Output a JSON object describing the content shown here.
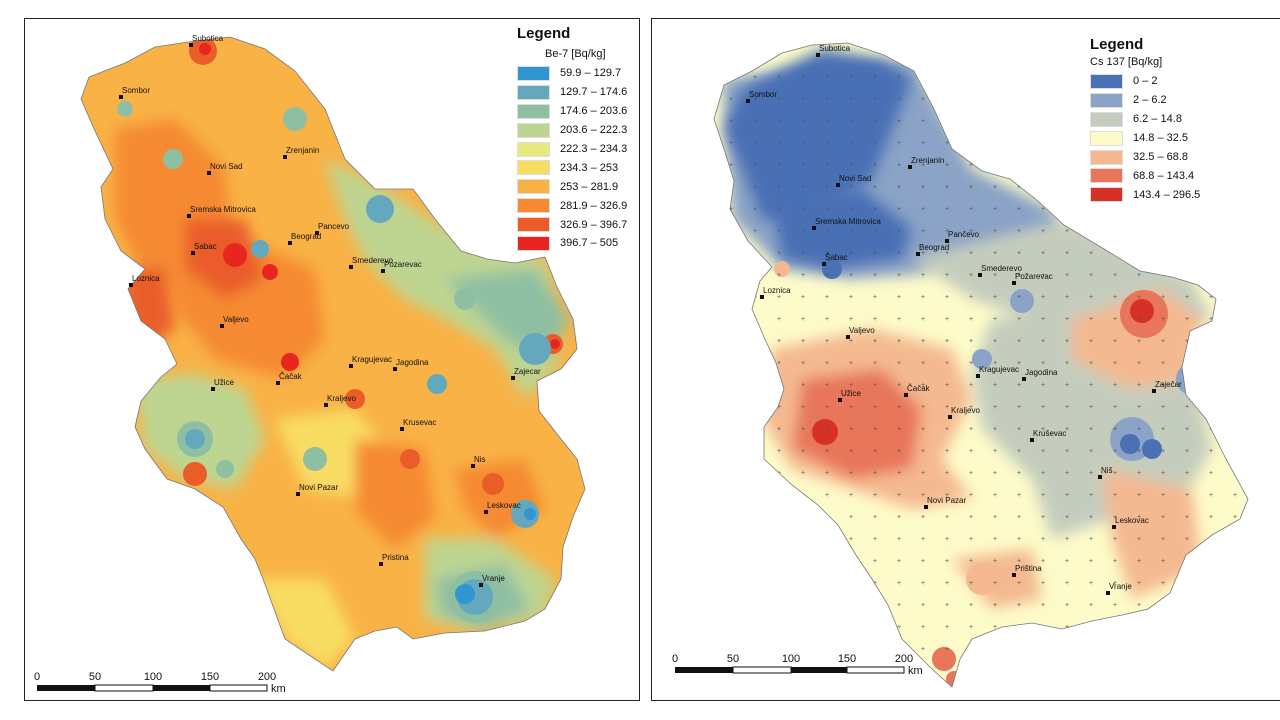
{
  "maps": [
    {
      "legend_title": "Legend",
      "variable": "Be-7 [Bq/kg]",
      "classes": [
        {
          "range": "59.9 – 129.7",
          "color": "#2f96d1"
        },
        {
          "range": "129.7 – 174.6",
          "color": "#63a8bd"
        },
        {
          "range": "174.6 – 203.6",
          "color": "#8fbfa2"
        },
        {
          "range": "203.6 – 222.3",
          "color": "#bdd591"
        },
        {
          "range": "222.3 – 234.3",
          "color": "#e7e97d"
        },
        {
          "range": "234.3 – 253",
          "color": "#f8dd63"
        },
        {
          "range": "253 – 281.9",
          "color": "#f9b246"
        },
        {
          "range": "281.9 – 326.9",
          "color": "#f58a33"
        },
        {
          "range": "326.9 – 396.7",
          "color": "#ea5d29"
        },
        {
          "range": "396.7 – 505",
          "color": "#e8261f"
        }
      ],
      "cities": [
        {
          "name": "Subotica"
        },
        {
          "name": "Sombor"
        },
        {
          "name": "Zrenjanin"
        },
        {
          "name": "Novi Sad"
        },
        {
          "name": "Sremska Mitrovica"
        },
        {
          "name": "Pancevo"
        },
        {
          "name": "Beograd"
        },
        {
          "name": "Sabac"
        },
        {
          "name": "Smederevo"
        },
        {
          "name": "Pozarevac"
        },
        {
          "name": "Loznica"
        },
        {
          "name": "Valjevo"
        },
        {
          "name": "Kragujevac"
        },
        {
          "name": "Jagodina"
        },
        {
          "name": "Zajecar"
        },
        {
          "name": "Užice"
        },
        {
          "name": "Čačak"
        },
        {
          "name": "Kraljevo"
        },
        {
          "name": "Krusevac"
        },
        {
          "name": "Nis"
        },
        {
          "name": "Novi Pazar"
        },
        {
          "name": "Leskovac"
        },
        {
          "name": "Pristina"
        },
        {
          "name": "Vranje"
        }
      ],
      "scale": {
        "ticks": [
          "0",
          "50",
          "100",
          "150",
          "200"
        ],
        "unit": "km"
      }
    },
    {
      "legend_title": "Legend",
      "variable": "Cs 137 [Bq/kg]",
      "classes": [
        {
          "range": "0 – 2",
          "color": "#4a70b5"
        },
        {
          "range": "2 – 6.2",
          "color": "#8aa3c6"
        },
        {
          "range": "6.2 – 14.8",
          "color": "#c4cdbd"
        },
        {
          "range": "14.8 – 32.5",
          "color": "#fdfbc9"
        },
        {
          "range": "32.5 – 68.8",
          "color": "#f4b990"
        },
        {
          "range": "68.8 – 143.4",
          "color": "#e8765a"
        },
        {
          "range": "143.4 – 296.5",
          "color": "#d63027"
        }
      ],
      "cities": [
        {
          "name": "Subotica"
        },
        {
          "name": "Sombor"
        },
        {
          "name": "Zrenjanin"
        },
        {
          "name": "Novi Sad"
        },
        {
          "name": "Sremska Mitrovica"
        },
        {
          "name": "Pančevo"
        },
        {
          "name": "Beograd"
        },
        {
          "name": "Šabac"
        },
        {
          "name": "Smederevo"
        },
        {
          "name": "Požarevac"
        },
        {
          "name": "Loznica"
        },
        {
          "name": "Valjevo"
        },
        {
          "name": "Kragujevac"
        },
        {
          "name": "Jagodina"
        },
        {
          "name": "Zaječar"
        },
        {
          "name": "Užice"
        },
        {
          "name": "Čačak"
        },
        {
          "name": "Kraljevo"
        },
        {
          "name": "Kruševac"
        },
        {
          "name": "Niš"
        },
        {
          "name": "Novi Pazar"
        },
        {
          "name": "Leskovac"
        },
        {
          "name": "Priština"
        },
        {
          "name": "Vranje"
        }
      ],
      "scale": {
        "ticks": [
          "0",
          "50",
          "100",
          "150",
          "200"
        ],
        "unit": "km"
      }
    }
  ]
}
